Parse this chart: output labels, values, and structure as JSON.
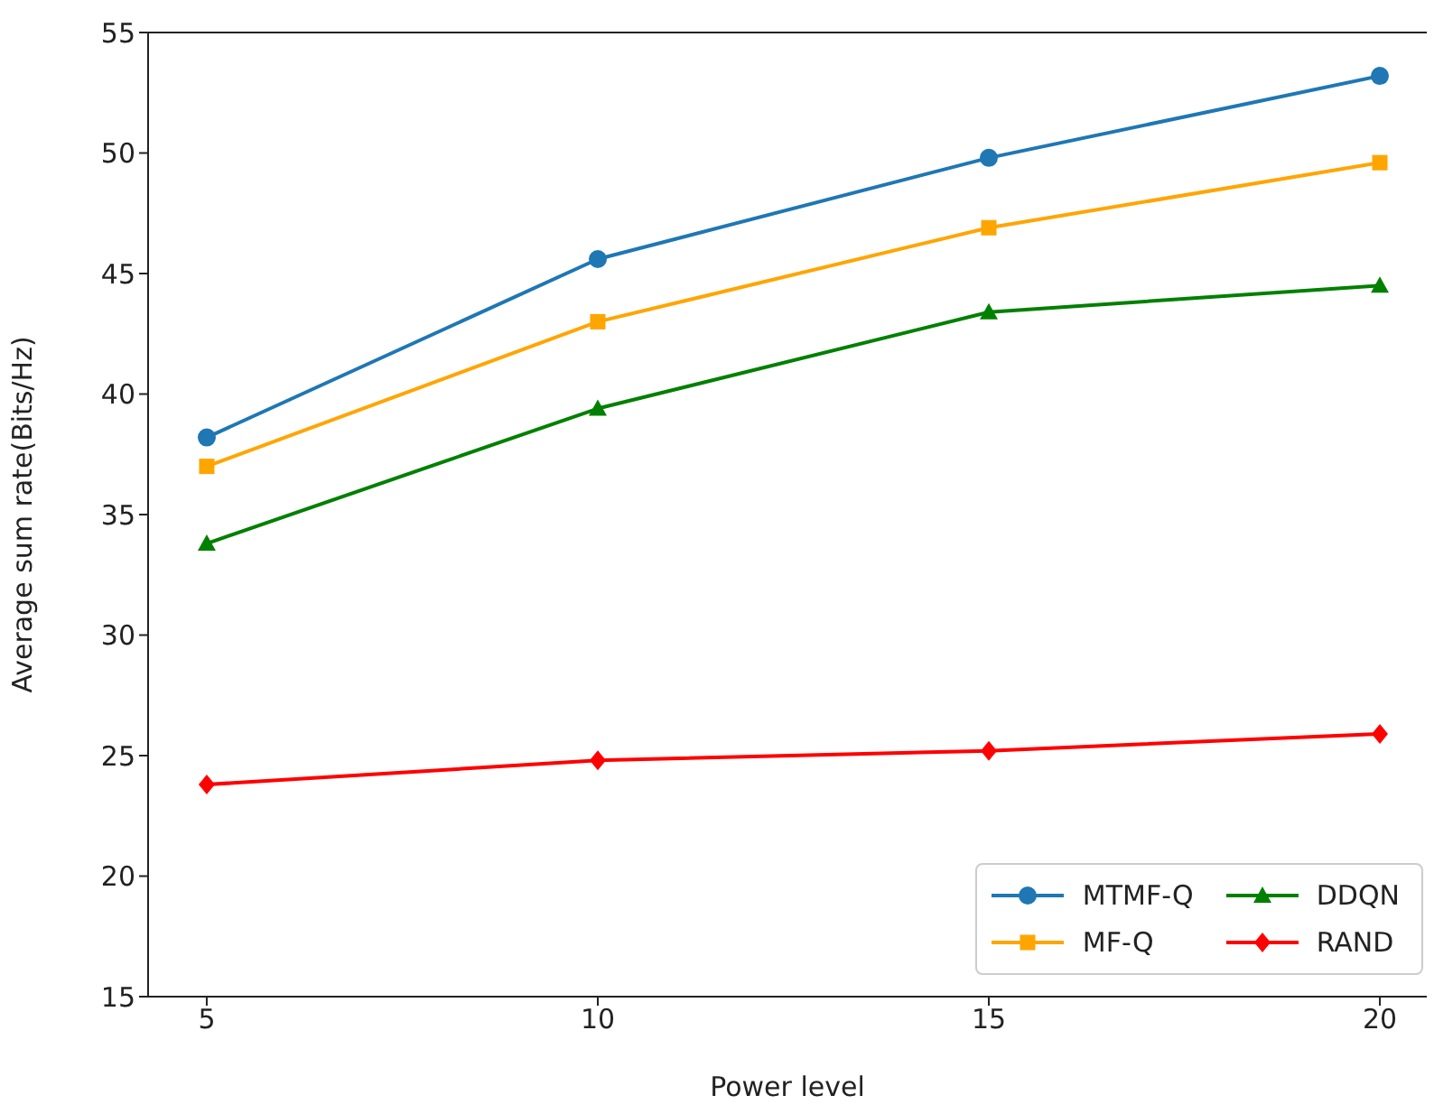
{
  "chart_data": {
    "type": "line",
    "xlabel": "Power level",
    "ylabel": "Average sum rate(Bits/Hz)",
    "x": [
      5,
      10,
      15,
      20
    ],
    "series": [
      {
        "name": "MTMF-Q",
        "color": "#1f77b4",
        "marker": "circle",
        "values": [
          38.2,
          45.6,
          49.8,
          53.2
        ]
      },
      {
        "name": "MF-Q",
        "color": "#ffa500",
        "marker": "square",
        "values": [
          37.0,
          43.0,
          46.9,
          49.6
        ]
      },
      {
        "name": "DDQN",
        "color": "#008000",
        "marker": "triangle",
        "values": [
          33.8,
          39.4,
          43.4,
          44.5
        ]
      },
      {
        "name": "RAND",
        "color": "#ff0000",
        "marker": "diamond",
        "values": [
          23.8,
          24.8,
          25.2,
          25.9
        ]
      }
    ],
    "xlim": [
      4.25,
      20.6
    ],
    "xticks": [
      5,
      10,
      15,
      20
    ],
    "ylim": [
      15,
      55
    ],
    "yticks": [
      15,
      20,
      25,
      30,
      35,
      40,
      45,
      50,
      55
    ],
    "grid": false,
    "legend": "bottom right",
    "line_style": "solid"
  }
}
